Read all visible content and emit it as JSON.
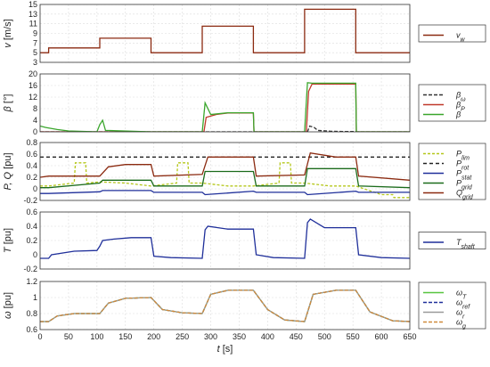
{
  "chart_data": [
    {
      "type": "line",
      "ylabel_main": "v",
      "ylabel_unit": " [m/s]",
      "ylim": [
        3,
        15
      ],
      "yticks": [
        3,
        5,
        7,
        9,
        11,
        13,
        15
      ],
      "xlim": [
        0,
        650
      ],
      "grid": true,
      "legend_placement": "right",
      "series": [
        {
          "name": "v",
          "sub": "w",
          "color": "#8b2a10",
          "dash": "",
          "x": [
            0,
            15,
            15,
            105,
            105,
            195,
            195,
            285,
            285,
            375,
            375,
            465,
            465,
            555,
            555,
            650
          ],
          "y": [
            5,
            5,
            6,
            6,
            8,
            8,
            5,
            5,
            10.5,
            10.5,
            5,
            5,
            14,
            14,
            5,
            5
          ]
        }
      ]
    },
    {
      "type": "line",
      "ylabel_main": "β",
      "ylabel_unit": " [°]",
      "ylim": [
        0,
        20
      ],
      "yticks": [
        0,
        4,
        8,
        12,
        16,
        20
      ],
      "xlim": [
        0,
        650
      ],
      "grid": true,
      "legend_placement": "right",
      "series": [
        {
          "name": "β",
          "sub": "ω",
          "color": "#333333",
          "dash": "4 2",
          "x": [
            0,
            470,
            474,
            482,
            488,
            510,
            540,
            555,
            556,
            650
          ],
          "y": [
            0,
            0,
            2,
            1.5,
            0.5,
            0.2,
            0.1,
            0.1,
            0,
            0
          ]
        },
        {
          "name": "β",
          "sub": "P",
          "color": "#c0392b",
          "dash": "",
          "x": [
            0,
            288,
            292,
            310,
            330,
            375,
            376,
            468,
            472,
            478,
            520,
            555,
            556,
            650
          ],
          "y": [
            0,
            0,
            5,
            6,
            6.5,
            6.5,
            0,
            0,
            14,
            16.5,
            16.5,
            16.5,
            0,
            0
          ]
        },
        {
          "name": "β",
          "sub": "",
          "color": "#3aa62c",
          "dash": "",
          "x": [
            0,
            10,
            30,
            50,
            100,
            105,
            110,
            115,
            195,
            285,
            290,
            300,
            330,
            375,
            376,
            465,
            470,
            478,
            520,
            555,
            556,
            650
          ],
          "y": [
            2,
            1.5,
            0.8,
            0.3,
            0,
            2.5,
            4,
            0.5,
            0,
            0,
            10,
            6,
            6.6,
            6.6,
            0,
            0,
            17,
            16.8,
            16.8,
            16.8,
            0,
            0
          ]
        }
      ]
    },
    {
      "type": "line",
      "ylabel_main": "P, Q",
      "ylabel_unit": " [pu]",
      "ylim": [
        -0.2,
        0.8
      ],
      "yticks": [
        -0.2,
        0,
        0.2,
        0.4,
        0.6,
        0.8
      ],
      "xlim": [
        0,
        650
      ],
      "grid": true,
      "legend_placement": "right",
      "series": [
        {
          "name": "P",
          "sub": "lim",
          "color": "#b5c71b",
          "dash": "3 2",
          "x": [
            0,
            15,
            60,
            62,
            80,
            82,
            105,
            150,
            195,
            240,
            242,
            260,
            262,
            285,
            330,
            375,
            420,
            422,
            440,
            442,
            465,
            510,
            555,
            600,
            602,
            620,
            622,
            650
          ],
          "y": [
            0.05,
            0.05,
            0.1,
            0.45,
            0.45,
            0.1,
            0.12,
            0.1,
            0.05,
            0.1,
            0.45,
            0.45,
            0.1,
            0.1,
            0.05,
            0.05,
            0.1,
            0.45,
            0.45,
            0.1,
            0.1,
            0.05,
            0.05,
            -0.1,
            -0.1,
            -0.1,
            -0.15,
            -0.15
          ]
        },
        {
          "name": "P",
          "sub": "rot",
          "color": "#222222",
          "dash": "4 3",
          "x": [
            0,
            650
          ],
          "y": [
            0.55,
            0.55
          ]
        },
        {
          "name": "P",
          "sub": "stat",
          "color": "#1f2f9a",
          "dash": "",
          "x": [
            0,
            15,
            105,
            110,
            195,
            200,
            285,
            290,
            375,
            380,
            465,
            470,
            555,
            560,
            650
          ],
          "y": [
            -0.08,
            -0.08,
            -0.05,
            -0.03,
            -0.03,
            -0.06,
            -0.06,
            -0.1,
            -0.04,
            -0.06,
            -0.06,
            -0.1,
            -0.04,
            -0.06,
            -0.06
          ]
        },
        {
          "name": "P",
          "sub": "grid",
          "color": "#1b6b1b",
          "dash": "",
          "x": [
            0,
            15,
            105,
            110,
            195,
            200,
            285,
            290,
            375,
            380,
            465,
            470,
            555,
            560,
            650
          ],
          "y": [
            0.02,
            0.02,
            0.1,
            0.15,
            0.15,
            0.05,
            0.05,
            0.3,
            0.3,
            0.05,
            0.05,
            0.35,
            0.35,
            0.05,
            0.02
          ]
        },
        {
          "name": "Q",
          "sub": "grid",
          "color": "#8b2a10",
          "dash": "",
          "x": [
            0,
            15,
            105,
            120,
            150,
            195,
            200,
            285,
            295,
            330,
            375,
            380,
            465,
            475,
            520,
            555,
            560,
            650
          ],
          "y": [
            0.2,
            0.22,
            0.22,
            0.38,
            0.42,
            0.42,
            0.22,
            0.25,
            0.55,
            0.55,
            0.55,
            0.22,
            0.24,
            0.62,
            0.55,
            0.55,
            0.22,
            0.15
          ]
        }
      ]
    },
    {
      "type": "line",
      "ylabel_main": "T",
      "ylabel_unit": " [pu]",
      "ylim": [
        -0.2,
        0.6
      ],
      "yticks": [
        -0.2,
        0,
        0.2,
        0.4,
        0.6
      ],
      "xlim": [
        0,
        650
      ],
      "grid": true,
      "legend_placement": "right",
      "series": [
        {
          "name": "T",
          "sub": "shaft",
          "color": "#1f2f9a",
          "dash": "",
          "x": [
            0,
            15,
            20,
            60,
            100,
            105,
            110,
            130,
            160,
            195,
            200,
            230,
            285,
            290,
            295,
            330,
            375,
            380,
            410,
            465,
            470,
            475,
            500,
            555,
            560,
            600,
            650
          ],
          "y": [
            -0.05,
            -0.05,
            0.0,
            0.05,
            0.06,
            0.12,
            0.2,
            0.22,
            0.24,
            0.24,
            -0.02,
            -0.04,
            -0.05,
            0.35,
            0.4,
            0.36,
            0.36,
            0.0,
            -0.04,
            -0.05,
            0.45,
            0.5,
            0.38,
            0.38,
            0.0,
            -0.04,
            -0.05
          ]
        }
      ]
    },
    {
      "type": "line",
      "ylabel_main": "ω",
      "ylabel_unit": " [pu]",
      "ylim": [
        0.6,
        1.2
      ],
      "yticks": [
        0.6,
        0.8,
        1.0,
        1.2
      ],
      "xlim": [
        0,
        650
      ],
      "xticks": [
        0,
        50,
        100,
        150,
        200,
        250,
        300,
        350,
        400,
        450,
        500,
        550,
        600,
        650
      ],
      "xlabel_main": "t",
      "xlabel_unit": " [s]",
      "grid": true,
      "legend_placement": "right",
      "series": [
        {
          "name": "ω",
          "sub": "T",
          "color": "#57c53f",
          "dash": "",
          "x": [
            0,
            15,
            30,
            60,
            105,
            120,
            150,
            195,
            215,
            250,
            285,
            300,
            330,
            375,
            400,
            430,
            465,
            480,
            520,
            555,
            580,
            620,
            650
          ],
          "y": [
            0.7,
            0.7,
            0.77,
            0.8,
            0.8,
            0.93,
            0.99,
            1.0,
            0.85,
            0.81,
            0.8,
            1.04,
            1.09,
            1.09,
            0.85,
            0.72,
            0.7,
            1.04,
            1.09,
            1.09,
            0.82,
            0.71,
            0.7
          ]
        },
        {
          "name": "ω",
          "sub": "ref",
          "color": "#1f2f9a",
          "dash": "4 2",
          "x": [
            0,
            15,
            30,
            60,
            105,
            120,
            150,
            195,
            215,
            250,
            285,
            300,
            330,
            375,
            400,
            430,
            465,
            480,
            520,
            555,
            580,
            620,
            650
          ],
          "y": [
            0.7,
            0.7,
            0.77,
            0.8,
            0.8,
            0.93,
            0.99,
            1.0,
            0.85,
            0.81,
            0.8,
            1.04,
            1.09,
            1.09,
            0.85,
            0.72,
            0.7,
            1.04,
            1.09,
            1.09,
            0.82,
            0.71,
            0.7
          ]
        },
        {
          "name": "ω",
          "sub": "r",
          "color": "#999999",
          "dash": "",
          "x": [
            0,
            15,
            30,
            60,
            105,
            120,
            150,
            195,
            215,
            250,
            285,
            300,
            330,
            375,
            400,
            430,
            465,
            480,
            520,
            555,
            580,
            620,
            650
          ],
          "y": [
            0.7,
            0.7,
            0.77,
            0.8,
            0.8,
            0.93,
            0.99,
            1.0,
            0.85,
            0.81,
            0.8,
            1.04,
            1.09,
            1.09,
            0.85,
            0.72,
            0.7,
            1.04,
            1.09,
            1.09,
            0.82,
            0.71,
            0.7
          ]
        },
        {
          "name": "ω",
          "sub": "g",
          "color": "#d08a3a",
          "dash": "4 2",
          "x": [
            0,
            15,
            30,
            60,
            105,
            120,
            150,
            195,
            215,
            250,
            285,
            300,
            330,
            375,
            400,
            430,
            465,
            480,
            520,
            555,
            580,
            620,
            650
          ],
          "y": [
            0.7,
            0.7,
            0.77,
            0.8,
            0.8,
            0.93,
            0.99,
            1.0,
            0.85,
            0.81,
            0.8,
            1.04,
            1.09,
            1.09,
            0.85,
            0.72,
            0.7,
            1.04,
            1.09,
            1.09,
            0.82,
            0.71,
            0.7
          ]
        }
      ]
    }
  ]
}
